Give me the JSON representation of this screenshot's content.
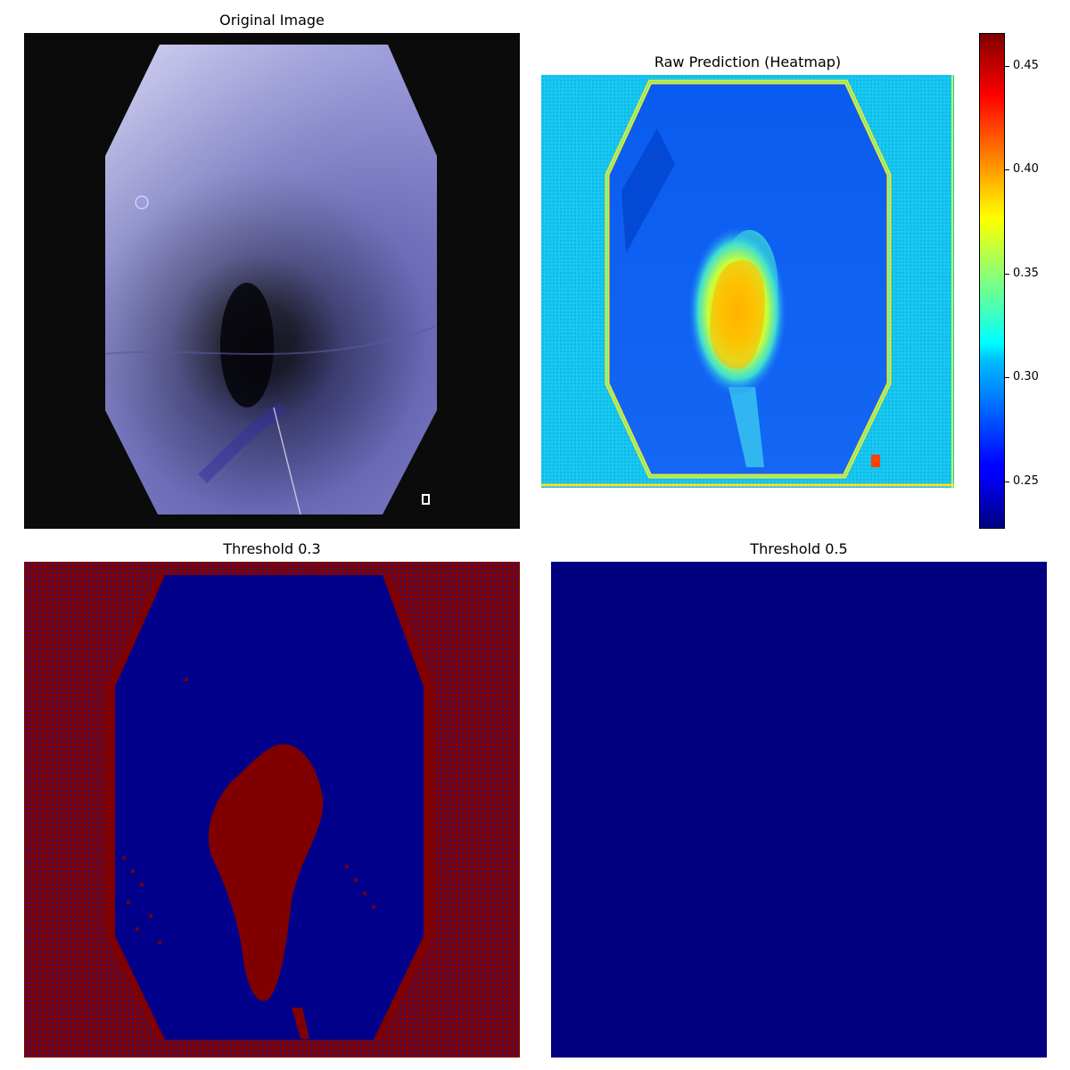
{
  "panels": {
    "original": {
      "title": "Original Image"
    },
    "heatmap": {
      "title": "Raw Prediction (Heatmap)"
    },
    "threshold_low": {
      "title": "Threshold 0.3"
    },
    "threshold_high": {
      "title": "Threshold 0.5"
    }
  },
  "colorbar": {
    "colormap": "jet",
    "min": 0.225,
    "max": 0.465,
    "ticks": [
      "0.45",
      "0.40",
      "0.35",
      "0.30",
      "0.25"
    ]
  },
  "colors": {
    "jet_dark_blue": "#000080",
    "jet_dark_red": "#800000",
    "background_black": "#0b0b0b"
  }
}
